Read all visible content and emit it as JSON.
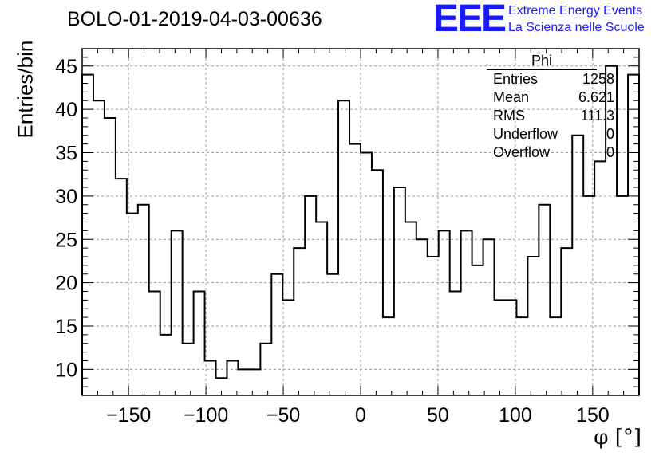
{
  "page_title": "BOLO-01-2019-04-03-00636",
  "logo": {
    "mark": "EEE",
    "line1": "Extreme Energy Events",
    "line2": "La Scienza nelle Scuole",
    "color": "#1a1aff"
  },
  "stats": {
    "name": "Phi",
    "rows": [
      {
        "label": "Entries",
        "value": "1258"
      },
      {
        "label": "Mean",
        "value": "6.621"
      },
      {
        "label": "RMS",
        "value": "111.3"
      },
      {
        "label": "Underflow",
        "value": "0"
      },
      {
        "label": "Overflow",
        "value": "0"
      }
    ]
  },
  "chart_data": {
    "type": "bar",
    "style": "step-histogram",
    "xlabel": "φ [°]",
    "ylabel": "Entries/bin",
    "xlim": [
      -180,
      180
    ],
    "ylim": [
      7,
      47
    ],
    "xticks": [
      -150,
      -100,
      -50,
      0,
      50,
      100,
      150
    ],
    "yticks": [
      10,
      15,
      20,
      25,
      30,
      35,
      40,
      45
    ],
    "grid": true,
    "bin_edges_start": -180,
    "bin_width": 7.2,
    "values": [
      44,
      41,
      39,
      32,
      28,
      29,
      19,
      14,
      26,
      13,
      19,
      11,
      9,
      11,
      10,
      10,
      13,
      21,
      18,
      24,
      30,
      27,
      21,
      41,
      36,
      35,
      33,
      16,
      31,
      27,
      25,
      23,
      26,
      19,
      26,
      22,
      25,
      18,
      18,
      16,
      23,
      29,
      16,
      24,
      37,
      30,
      34,
      45,
      30,
      44
    ],
    "line_color": "#000000",
    "grid_color": "#999999"
  }
}
